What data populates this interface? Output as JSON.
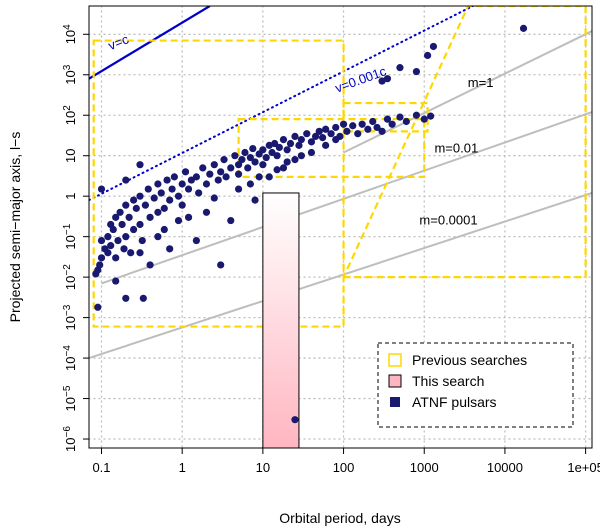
{
  "chart_data": {
    "type": "scatter",
    "title": "",
    "xlabel": "Orbital period, days",
    "ylabel": "Projected semi−major axis, l−s",
    "xscale": "log",
    "yscale": "log",
    "xlim": [
      0.07,
      120000
    ],
    "ylim": [
      6e-07,
      50000
    ],
    "grid": true,
    "x_ticks": [
      {
        "value": 0.1,
        "label": "0.1"
      },
      {
        "value": 1,
        "label": "1"
      },
      {
        "value": 10,
        "label": "10"
      },
      {
        "value": 100,
        "label": "100"
      },
      {
        "value": 1000,
        "label": "1000"
      },
      {
        "value": 10000,
        "label": "10000"
      },
      {
        "value": 100000,
        "label": "1e+05"
      }
    ],
    "y_ticks": [
      {
        "value": 1e-06,
        "mant": "10",
        "exp": "−6"
      },
      {
        "value": 1e-05,
        "mant": "10",
        "exp": "−5"
      },
      {
        "value": 0.0001,
        "mant": "10",
        "exp": "−4"
      },
      {
        "value": 0.001,
        "mant": "10",
        "exp": "−3"
      },
      {
        "value": 0.01,
        "mant": "10",
        "exp": "−2"
      },
      {
        "value": 0.1,
        "mant": "10",
        "exp": "−1"
      },
      {
        "value": 1,
        "mant": "1",
        "exp": ""
      },
      {
        "value": 10,
        "mant": "10",
        "exp": ""
      },
      {
        "value": 100,
        "mant": "10",
        "exp": "2"
      },
      {
        "value": 1000,
        "mant": "10",
        "exp": "3"
      },
      {
        "value": 10000,
        "mant": "10",
        "exp": "4"
      }
    ],
    "reference_lines": [
      {
        "label": "v=c",
        "points": [
          [
            0.07,
            800
          ],
          [
            2.2,
            50000
          ]
        ],
        "color": "#0000cc",
        "style": "solid",
        "label_at": [
          0.17,
          5000
        ],
        "label_rotate": -22
      },
      {
        "label": "v=0.001c",
        "points": [
          [
            0.07,
            0.8
          ],
          [
            4000,
            50000
          ]
        ],
        "color": "#0000cc",
        "style": "dotted",
        "label_at": [
          170,
          600
        ],
        "label_rotate": -20
      },
      {
        "label": "m=1",
        "points": [
          [
            100,
            12
          ],
          [
            120000,
            12000
          ]
        ],
        "color": "#bebebe",
        "style": "solid",
        "label_at": [
          5000,
          500
        ],
        "label_rotate": 0
      },
      {
        "label": "m=0.01",
        "points": [
          [
            0.1,
            0.007
          ],
          [
            120000,
            120
          ]
        ],
        "color": "#bebebe",
        "style": "solid",
        "label_at": [
          2500,
          12
        ],
        "label_rotate": 0
      },
      {
        "label": "m=0.0001",
        "points": [
          [
            0.07,
            0.0001
          ],
          [
            120000,
            1.2
          ]
        ],
        "color": "#bebebe",
        "style": "solid",
        "label_at": [
          2000,
          0.2
        ],
        "label_rotate": 0
      }
    ],
    "previous_searches": [
      {
        "type": "rect",
        "x": [
          0.08,
          100
        ],
        "y": [
          0.0006,
          7000
        ]
      },
      {
        "type": "rect",
        "x": [
          5,
          1000
        ],
        "y": [
          3,
          80
        ]
      },
      {
        "type": "rect",
        "x": [
          100,
          1100
        ],
        "y": [
          40,
          200
        ]
      },
      {
        "type": "polygon",
        "points": [
          [
            100,
            0.01
          ],
          [
            100000,
            0.01
          ],
          [
            100000,
            50000
          ],
          [
            3500,
            50000
          ],
          [
            100,
            0.01
          ]
        ]
      }
    ],
    "this_search": {
      "x": [
        10,
        28
      ],
      "y": [
        6e-07,
        1.2
      ]
    },
    "series": [
      {
        "name": "ATNF pulsars",
        "color": "#191970",
        "points": [
          [
            0.085,
            0.012
          ],
          [
            0.09,
            0.015
          ],
          [
            0.095,
            0.02
          ],
          [
            0.1,
            0.03
          ],
          [
            0.1,
            0.08
          ],
          [
            0.11,
            0.05
          ],
          [
            0.12,
            0.1
          ],
          [
            0.12,
            0.04
          ],
          [
            0.13,
            0.2
          ],
          [
            0.13,
            0.06
          ],
          [
            0.14,
            0.15
          ],
          [
            0.15,
            0.3
          ],
          [
            0.15,
            0.03
          ],
          [
            0.16,
            0.08
          ],
          [
            0.17,
            0.4
          ],
          [
            0.18,
            0.2
          ],
          [
            0.19,
            0.05
          ],
          [
            0.2,
            0.6
          ],
          [
            0.2,
            0.1
          ],
          [
            0.22,
            0.3
          ],
          [
            0.23,
            0.04
          ],
          [
            0.25,
            0.8
          ],
          [
            0.25,
            0.15
          ],
          [
            0.27,
            0.5
          ],
          [
            0.3,
            1.0
          ],
          [
            0.3,
            0.2
          ],
          [
            0.32,
            0.08
          ],
          [
            0.35,
            0.6
          ],
          [
            0.38,
            1.5
          ],
          [
            0.4,
            0.3
          ],
          [
            0.45,
            0.9
          ],
          [
            0.5,
            2
          ],
          [
            0.5,
            0.4
          ],
          [
            0.55,
            1.2
          ],
          [
            0.6,
            0.5
          ],
          [
            0.65,
            2.5
          ],
          [
            0.7,
            0.8
          ],
          [
            0.75,
            1.5
          ],
          [
            0.8,
            3
          ],
          [
            0.9,
            1.0
          ],
          [
            1.0,
            2
          ],
          [
            1.0,
            0.6
          ],
          [
            1.1,
            4
          ],
          [
            1.2,
            1.5
          ],
          [
            1.3,
            2.5
          ],
          [
            1.5,
            3
          ],
          [
            1.6,
            1.2
          ],
          [
            1.8,
            5
          ],
          [
            2,
            2
          ],
          [
            2.2,
            3.5
          ],
          [
            2.5,
            6
          ],
          [
            2.8,
            2.5
          ],
          [
            3,
            4
          ],
          [
            3.3,
            8
          ],
          [
            3.5,
            3
          ],
          [
            4,
            5
          ],
          [
            4.5,
            10
          ],
          [
            5,
            6
          ],
          [
            5,
            3.5
          ],
          [
            5.5,
            8
          ],
          [
            6,
            12
          ],
          [
            6.5,
            5
          ],
          [
            7,
            9
          ],
          [
            7.5,
            15
          ],
          [
            8,
            7
          ],
          [
            9,
            11
          ],
          [
            10,
            14
          ],
          [
            10,
            6
          ],
          [
            11,
            9
          ],
          [
            12,
            18
          ],
          [
            13,
            12
          ],
          [
            14,
            20
          ],
          [
            15,
            10
          ],
          [
            16,
            16
          ],
          [
            18,
            25
          ],
          [
            20,
            14
          ],
          [
            22,
            20
          ],
          [
            25,
            30
          ],
          [
            28,
            18
          ],
          [
            30,
            25
          ],
          [
            35,
            35
          ],
          [
            40,
            22
          ],
          [
            45,
            30
          ],
          [
            50,
            40
          ],
          [
            55,
            28
          ],
          [
            60,
            45
          ],
          [
            70,
            35
          ],
          [
            80,
            50
          ],
          [
            90,
            30
          ],
          [
            100,
            60
          ],
          [
            110,
            40
          ],
          [
            130,
            55
          ],
          [
            150,
            35
          ],
          [
            170,
            60
          ],
          [
            200,
            45
          ],
          [
            230,
            70
          ],
          [
            260,
            50
          ],
          [
            300,
            40
          ],
          [
            350,
            80
          ],
          [
            400,
            60
          ],
          [
            500,
            90
          ],
          [
            600,
            70
          ],
          [
            800,
            100
          ],
          [
            1000,
            80
          ],
          [
            1200,
            95
          ],
          [
            0.1,
            1.5
          ],
          [
            0.2,
            2.5
          ],
          [
            0.3,
            6
          ],
          [
            0.2,
            0.003
          ],
          [
            0.15,
            0.008
          ],
          [
            0.33,
            0.003
          ],
          [
            0.09,
            0.0018
          ],
          [
            300,
            700
          ],
          [
            350,
            800
          ],
          [
            500,
            1500
          ],
          [
            800,
            1200
          ],
          [
            1100,
            3000
          ],
          [
            1300,
            5000
          ],
          [
            17000,
            14000
          ],
          [
            25,
            3e-06
          ],
          [
            3,
            0.02
          ],
          [
            2,
            0.4
          ],
          [
            4,
            0.25
          ],
          [
            8,
            0.8
          ],
          [
            1.5,
            0.08
          ],
          [
            12,
            3
          ],
          [
            18,
            5
          ],
          [
            25,
            8
          ],
          [
            40,
            12
          ],
          [
            60,
            18
          ],
          [
            80,
            25
          ],
          [
            0.7,
            0.05
          ],
          [
            0.4,
            0.02
          ],
          [
            0.6,
            0.15
          ],
          [
            1.2,
            0.3
          ],
          [
            0.3,
            0.04
          ],
          [
            0.5,
            0.1
          ],
          [
            0.9,
            0.25
          ],
          [
            2.5,
            0.9
          ],
          [
            5,
            1.5
          ],
          [
            7,
            2
          ],
          [
            9,
            3
          ],
          [
            15,
            4.5
          ],
          [
            20,
            7
          ],
          [
            30,
            10
          ]
        ]
      }
    ],
    "legend": {
      "position": "bottom-right",
      "entries": [
        {
          "label": "Previous searches",
          "swatch": "previous"
        },
        {
          "label": "This search",
          "swatch": "this"
        },
        {
          "label": "ATNF pulsars",
          "swatch": "pulsar"
        }
      ]
    },
    "colors": {
      "previous": "#ffd700",
      "this_search_top": "#ffffff",
      "this_search_bottom": "#ffb6c1",
      "pulsar": "#191970",
      "vline": "#0000cc",
      "mline": "#bebebe",
      "grid": "#bebebe"
    }
  }
}
